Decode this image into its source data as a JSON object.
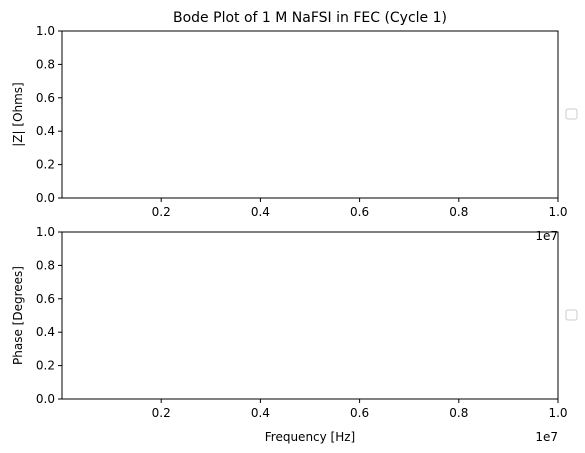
{
  "chart_data": [
    {
      "type": "line",
      "title": "Bode Plot of 1 M NaFSI in FEC (Cycle 1)",
      "xlabel": "",
      "ylabel": "|Z| [Ohms]",
      "xlim": [
        0,
        10000000
      ],
      "ylim": [
        0,
        1
      ],
      "x_offset_label": "1e7",
      "x_ticks": [
        "0.2",
        "0.4",
        "0.6",
        "0.8",
        "1.0"
      ],
      "y_ticks": [
        "0.0",
        "0.2",
        "0.4",
        "0.6",
        "0.8",
        "1.0"
      ],
      "series": [],
      "legend": "empty, center-right outside axes",
      "grid": false
    },
    {
      "type": "line",
      "title": "",
      "xlabel": "Frequency [Hz]",
      "ylabel": "Phase [Degrees]",
      "xlim": [
        0,
        10000000
      ],
      "ylim": [
        0,
        1
      ],
      "x_offset_label": "1e7",
      "x_ticks": [
        "0.2",
        "0.4",
        "0.6",
        "0.8",
        "1.0"
      ],
      "y_ticks": [
        "0.0",
        "0.2",
        "0.4",
        "0.6",
        "0.8",
        "1.0"
      ],
      "series": [],
      "legend": "empty, center-right outside axes",
      "grid": false
    }
  ]
}
